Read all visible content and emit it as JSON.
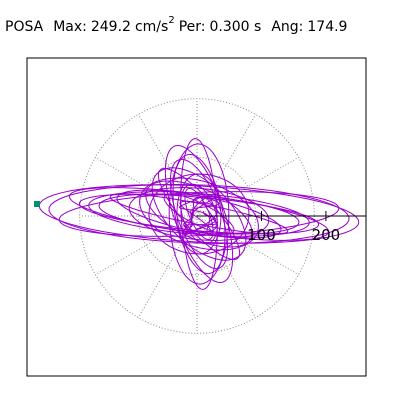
{
  "header": {
    "station": "POSA",
    "max_label": "Max:",
    "max_value": "249.2",
    "max_unit": "cm/s",
    "max_exp": "2",
    "per_label": "Per:",
    "per_value": "0.300 s",
    "ang_label": "Ang:",
    "ang_value": "174.9"
  },
  "chart_data": {
    "type": "scatter",
    "subtype": "polar-orbit",
    "radial_ticks": [
      "100",
      "200"
    ],
    "rings": [
      100,
      200
    ],
    "grid": "dotted",
    "rlim": [
      0,
      260
    ],
    "angle_deg": 174.9,
    "max_amplitude": 249.2,
    "max_point_color": "#009070",
    "trace_color": "#9900cc"
  }
}
